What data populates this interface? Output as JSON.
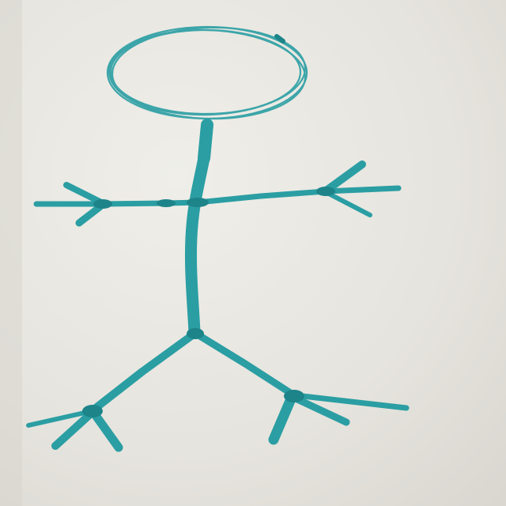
{
  "image": {
    "subject": "stick-figure",
    "medium": "marker-on-whiteboard",
    "colors": {
      "ink": "#2a9ea3",
      "ink_dark": "#1d8489",
      "board": "#e6e4de",
      "board_light": "#efeee9",
      "board_shadow": "#d9d7d0"
    }
  }
}
